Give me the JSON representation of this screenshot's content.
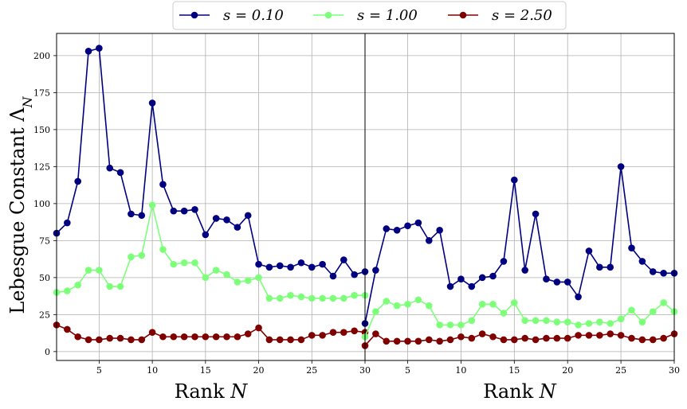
{
  "legend": {
    "entries": [
      {
        "label": "s = 0.10",
        "color": "#000080"
      },
      {
        "label": "s = 1.00",
        "color": "#7dff7a"
      },
      {
        "label": "s = 2.50",
        "color": "#800000"
      }
    ],
    "placement": "top-center"
  },
  "ylabel": "Lebesgue Constant Λ_N",
  "chart_data": [
    {
      "type": "line",
      "xlabel": "Rank N",
      "ylabel": "Lebesgue Constant Λ_N",
      "xlim": [
        1,
        30
      ],
      "ylim": [
        -6,
        215
      ],
      "xticks": [
        5,
        10,
        15,
        20,
        25,
        30
      ],
      "yticks": [
        0,
        25,
        50,
        75,
        100,
        125,
        150,
        175,
        200
      ],
      "grid": true,
      "x": [
        1,
        2,
        3,
        4,
        5,
        6,
        7,
        8,
        9,
        10,
        11,
        12,
        13,
        14,
        15,
        16,
        17,
        18,
        19,
        20,
        21,
        22,
        23,
        24,
        25,
        26,
        27,
        28,
        29,
        30
      ],
      "series": [
        {
          "name": "s = 0.10",
          "color": "#000080",
          "values": [
            80,
            87,
            115,
            203,
            205,
            124,
            121,
            93,
            92,
            168,
            113,
            95,
            95,
            96,
            79,
            90,
            89,
            84,
            92,
            59,
            57,
            58,
            57,
            60,
            57,
            59,
            51,
            62,
            52,
            54
          ]
        },
        {
          "name": "s = 1.00",
          "color": "#7dff7a",
          "values": [
            40,
            41,
            45,
            55,
            55,
            44,
            44,
            64,
            65,
            99,
            69,
            59,
            60,
            60,
            50,
            55,
            52,
            47,
            48,
            50,
            36,
            36,
            38,
            37,
            36,
            36,
            36,
            36,
            38,
            38
          ]
        },
        {
          "name": "s = 2.50",
          "color": "#800000",
          "values": [
            18,
            15,
            10,
            8,
            8,
            9,
            9,
            8,
            8,
            13,
            10,
            10,
            10,
            10,
            10,
            10,
            10,
            10,
            12,
            16,
            8,
            8,
            8,
            8,
            11,
            11,
            13,
            13,
            14,
            13
          ]
        }
      ]
    },
    {
      "type": "line",
      "xlabel": "Rank N",
      "xlim": [
        1,
        30
      ],
      "ylim": [
        -6,
        215
      ],
      "xticks": [
        5,
        10,
        15,
        20,
        25,
        30
      ],
      "grid": true,
      "x": [
        1,
        2,
        3,
        4,
        5,
        6,
        7,
        8,
        9,
        10,
        11,
        12,
        13,
        14,
        15,
        16,
        17,
        18,
        19,
        20,
        21,
        22,
        23,
        24,
        25,
        26,
        27,
        28,
        29,
        30
      ],
      "series": [
        {
          "name": "s = 0.10",
          "color": "#000080",
          "values": [
            19,
            55,
            83,
            82,
            85,
            87,
            75,
            82,
            44,
            49,
            44,
            50,
            51,
            61,
            116,
            55,
            93,
            49,
            47,
            47,
            37,
            68,
            57,
            57,
            125,
            70,
            61,
            54,
            53,
            53
          ]
        },
        {
          "name": "s = 1.00",
          "color": "#7dff7a",
          "values": [
            10,
            27,
            34,
            31,
            32,
            35,
            31,
            18,
            18,
            18,
            21,
            32,
            32,
            26,
            33,
            21,
            21,
            21,
            20,
            20,
            18,
            19,
            20,
            19,
            22,
            28,
            20,
            27,
            33,
            27
          ]
        },
        {
          "name": "s = 2.50",
          "color": "#800000",
          "values": [
            4,
            12,
            7,
            7,
            7,
            7,
            8,
            7,
            8,
            10,
            9,
            12,
            10,
            8,
            8,
            9,
            8,
            9,
            9,
            9,
            11,
            11,
            11,
            12,
            11,
            9,
            8,
            8,
            9,
            12
          ]
        }
      ]
    }
  ]
}
